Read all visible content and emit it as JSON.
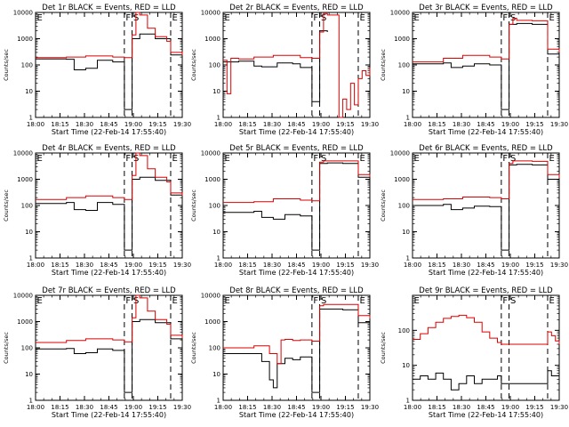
{
  "chart_data": [
    {
      "type": "line",
      "title": "Det 1r BLACK = Events, RED = LLD",
      "xlabel": "Start Time (22-Feb-14 17:55:40)",
      "ylabel": "Counts/sec",
      "yscale": "log",
      "ylim": [
        1,
        10000
      ],
      "xlim": [
        0,
        38
      ],
      "xticks": [
        "18:00",
        "18:15",
        "18:30",
        "18:45",
        "19:00",
        "19:15",
        "19:30"
      ],
      "yticks": [
        "1",
        "10",
        "100",
        "1000",
        "10000"
      ],
      "markers": [
        {
          "label": "E",
          "t": 0
        },
        {
          "label": "F",
          "t": 23
        },
        {
          "label": "S",
          "t": 25
        },
        {
          "label": "E",
          "t": 35
        }
      ],
      "series": [
        {
          "name": "Events",
          "color": "#000000",
          "x": [
            0,
            8,
            10,
            13,
            16,
            20,
            23,
            25,
            27,
            31,
            35,
            38
          ],
          "values": [
            170,
            165,
            65,
            75,
            150,
            130,
            2,
            1000,
            1500,
            1000,
            240,
            190
          ]
        },
        {
          "name": "LLD",
          "color": "#dd0000",
          "x": [
            0,
            8,
            13,
            20,
            23,
            25,
            26,
            27,
            29,
            31,
            34,
            35,
            38
          ],
          "values": [
            190,
            200,
            220,
            200,
            190,
            1400,
            10000,
            8000,
            2500,
            1200,
            800,
            300,
            230
          ]
        }
      ]
    },
    {
      "type": "line",
      "title": "Det 2r BLACK = Events, RED = LLD",
      "xlabel": "Start Time (22-Feb-14 17:55:40)",
      "ylabel": "Counts/sec",
      "yscale": "log",
      "ylim": [
        1,
        10000
      ],
      "xlim": [
        0,
        38
      ],
      "xticks": [
        "18:00",
        "18:15",
        "18:30",
        "18:45",
        "19:00",
        "19:15",
        "19:30"
      ],
      "yticks": [
        "1",
        "10",
        "100",
        "1000",
        "10000"
      ],
      "markers": [
        {
          "label": "E",
          "t": 0
        },
        {
          "label": "F",
          "t": 23
        },
        {
          "label": "S",
          "t": 25
        },
        {
          "label": "E",
          "t": 35
        }
      ],
      "series": [
        {
          "name": "Events",
          "color": "#000000",
          "x": [
            0,
            4,
            8,
            10,
            14,
            18,
            20,
            23,
            25,
            27
          ],
          "values": [
            130,
            140,
            90,
            85,
            120,
            110,
            80,
            4,
            2000,
            1800
          ]
        },
        {
          "name": "LLD",
          "color": "#dd0000",
          "x": [
            0,
            1,
            2,
            4,
            8,
            13,
            20,
            23,
            25,
            26,
            27,
            30,
            31,
            32,
            33,
            34,
            35,
            36,
            37,
            38
          ],
          "values": [
            150,
            8,
            180,
            170,
            200,
            230,
            190,
            180,
            1800,
            9000,
            8000,
            1,
            5,
            2,
            20,
            3,
            30,
            60,
            40,
            80
          ]
        }
      ]
    },
    {
      "type": "line",
      "title": "Det 3r BLACK = Events, RED = LLD",
      "xlabel": "Start Time (22-Feb-14 17:55:40)",
      "ylabel": "Counts/sec",
      "yscale": "log",
      "ylim": [
        1,
        10000
      ],
      "xlim": [
        0,
        38
      ],
      "xticks": [
        "18:00",
        "18:15",
        "18:30",
        "18:45",
        "19:00",
        "19:15",
        "19:30"
      ],
      "yticks": [
        "1",
        "10",
        "100",
        "1000",
        "10000"
      ],
      "markers": [
        {
          "label": "E",
          "t": 0
        },
        {
          "label": "F",
          "t": 23
        },
        {
          "label": "S",
          "t": 25
        },
        {
          "label": "E",
          "t": 35
        }
      ],
      "series": [
        {
          "name": "Events",
          "color": "#000000",
          "x": [
            0,
            8,
            10,
            13,
            16,
            20,
            23,
            25,
            27,
            31,
            35,
            38
          ],
          "values": [
            110,
            120,
            80,
            90,
            110,
            100,
            2,
            3500,
            3800,
            3500,
            260,
            200
          ]
        },
        {
          "name": "LLD",
          "color": "#dd0000",
          "x": [
            0,
            8,
            13,
            20,
            23,
            25,
            26,
            27,
            31,
            35,
            38
          ],
          "values": [
            130,
            180,
            230,
            200,
            170,
            3500,
            6000,
            5000,
            4800,
            400,
            300
          ]
        }
      ]
    },
    {
      "type": "line",
      "title": "Det 4r BLACK = Events, RED = LLD",
      "xlabel": "Start Time (22-Feb-14 17:55:40)",
      "ylabel": "Counts/sec",
      "yscale": "log",
      "ylim": [
        1,
        10000
      ],
      "xlim": [
        0,
        38
      ],
      "xticks": [
        "18:00",
        "18:15",
        "18:30",
        "18:45",
        "19:00",
        "19:15",
        "19:30"
      ],
      "yticks": [
        "1",
        "10",
        "100",
        "1000",
        "10000"
      ],
      "markers": [
        {
          "label": "E",
          "t": 0
        },
        {
          "label": "F",
          "t": 23
        },
        {
          "label": "S",
          "t": 25
        },
        {
          "label": "E",
          "t": 35
        }
      ],
      "series": [
        {
          "name": "Events",
          "color": "#000000",
          "x": [
            0,
            8,
            10,
            13,
            16,
            20,
            23,
            25,
            27,
            31,
            35,
            38
          ],
          "values": [
            120,
            130,
            70,
            65,
            130,
            110,
            2,
            1000,
            1200,
            900,
            250,
            180
          ]
        },
        {
          "name": "LLD",
          "color": "#dd0000",
          "x": [
            0,
            8,
            13,
            20,
            23,
            25,
            26,
            27,
            29,
            31,
            34,
            35,
            38
          ],
          "values": [
            170,
            200,
            230,
            200,
            170,
            1400,
            10000,
            8000,
            2500,
            1200,
            800,
            300,
            230
          ]
        }
      ]
    },
    {
      "type": "line",
      "title": "Det 5r BLACK = Events, RED = LLD",
      "xlabel": "Start Time (22-Feb-14 17:55:40)",
      "ylabel": "Counts/sec",
      "yscale": "log",
      "ylim": [
        1,
        10000
      ],
      "xlim": [
        0,
        38
      ],
      "xticks": [
        "18:00",
        "18:15",
        "18:30",
        "18:45",
        "19:00",
        "19:15",
        "19:30"
      ],
      "yticks": [
        "1",
        "10",
        "100",
        "1000",
        "10000"
      ],
      "markers": [
        {
          "label": "E",
          "t": 0
        },
        {
          "label": "F",
          "t": 23
        },
        {
          "label": "S",
          "t": 25
        },
        {
          "label": "E",
          "t": 35
        }
      ],
      "series": [
        {
          "name": "Events",
          "color": "#000000",
          "x": [
            0,
            8,
            10,
            13,
            16,
            20,
            23,
            25,
            27,
            31,
            35,
            38
          ],
          "values": [
            55,
            60,
            35,
            30,
            45,
            40,
            2,
            4000,
            4200,
            4000,
            1200,
            900
          ]
        },
        {
          "name": "LLD",
          "color": "#dd0000",
          "x": [
            0,
            8,
            13,
            20,
            23,
            25,
            26,
            31,
            35,
            38
          ],
          "values": [
            130,
            140,
            180,
            160,
            150,
            4500,
            5000,
            5000,
            1500,
            1200
          ]
        }
      ]
    },
    {
      "type": "line",
      "title": "Det 6r BLACK = Events, RED = LLD",
      "xlabel": "Start Time (22-Feb-14 17:55:40)",
      "ylabel": "Counts/sec",
      "yscale": "log",
      "ylim": [
        1,
        10000
      ],
      "xlim": [
        0,
        38
      ],
      "xticks": [
        "18:00",
        "18:15",
        "18:30",
        "18:45",
        "19:00",
        "19:15",
        "19:30"
      ],
      "yticks": [
        "1",
        "10",
        "100",
        "1000",
        "10000"
      ],
      "markers": [
        {
          "label": "E",
          "t": 0
        },
        {
          "label": "F",
          "t": 23
        },
        {
          "label": "S",
          "t": 25
        },
        {
          "label": "E",
          "t": 35
        }
      ],
      "series": [
        {
          "name": "Events",
          "color": "#000000",
          "x": [
            0,
            8,
            10,
            13,
            16,
            20,
            23,
            25,
            27,
            31,
            35,
            38
          ],
          "values": [
            100,
            110,
            70,
            80,
            95,
            90,
            2,
            3500,
            3700,
            3500,
            1000,
            800
          ]
        },
        {
          "name": "LLD",
          "color": "#dd0000",
          "x": [
            0,
            8,
            13,
            20,
            23,
            25,
            26,
            31,
            35,
            38
          ],
          "values": [
            170,
            180,
            210,
            200,
            180,
            4000,
            5000,
            4800,
            1500,
            1100
          ]
        }
      ]
    },
    {
      "type": "line",
      "title": "Det 7r BLACK = Events, RED = LLD",
      "xlabel": "Start Time (22-Feb-14 17:55:40)",
      "ylabel": "Counts/sec",
      "yscale": "log",
      "ylim": [
        1,
        10000
      ],
      "xlim": [
        0,
        38
      ],
      "xticks": [
        "18:00",
        "18:15",
        "18:30",
        "18:45",
        "19:00",
        "19:15",
        "19:30"
      ],
      "yticks": [
        "1",
        "10",
        "100",
        "1000",
        "10000"
      ],
      "markers": [
        {
          "label": "E",
          "t": 0
        },
        {
          "label": "F",
          "t": 23
        },
        {
          "label": "S",
          "t": 25
        },
        {
          "label": "E",
          "t": 35
        }
      ],
      "series": [
        {
          "name": "Events",
          "color": "#000000",
          "x": [
            0,
            8,
            10,
            13,
            16,
            20,
            23,
            25,
            27,
            31,
            35,
            38
          ],
          "values": [
            90,
            95,
            60,
            65,
            90,
            80,
            2,
            1000,
            1200,
            900,
            220,
            180
          ]
        },
        {
          "name": "LLD",
          "color": "#dd0000",
          "x": [
            0,
            8,
            13,
            20,
            23,
            25,
            26,
            27,
            29,
            31,
            34,
            35,
            38
          ],
          "values": [
            160,
            190,
            220,
            200,
            170,
            1400,
            10000,
            8000,
            2500,
            1200,
            800,
            300,
            230
          ]
        }
      ]
    },
    {
      "type": "line",
      "title": "Det 8r BLACK = Events, RED = LLD",
      "xlabel": "Start Time (22-Feb-14 17:55:40)",
      "ylabel": "Counts/sec",
      "yscale": "log",
      "ylim": [
        1,
        10000
      ],
      "xlim": [
        0,
        38
      ],
      "xticks": [
        "18:00",
        "18:15",
        "18:30",
        "18:45",
        "19:00",
        "19:15",
        "19:30"
      ],
      "yticks": [
        "1",
        "10",
        "100",
        "1000",
        "10000"
      ],
      "markers": [
        {
          "label": "E",
          "t": 0
        },
        {
          "label": "F",
          "t": 23
        },
        {
          "label": "S",
          "t": 25
        },
        {
          "label": "E",
          "t": 35
        }
      ],
      "series": [
        {
          "name": "Events",
          "color": "#000000",
          "x": [
            0,
            8,
            10,
            12,
            13,
            14,
            16,
            18,
            20,
            23,
            25,
            27,
            31,
            35,
            38
          ],
          "values": [
            60,
            60,
            30,
            6,
            3,
            25,
            40,
            35,
            45,
            2,
            3000,
            3000,
            2800,
            900,
            700
          ]
        },
        {
          "name": "LLD",
          "color": "#dd0000",
          "x": [
            0,
            8,
            12,
            14,
            15,
            16,
            18,
            20,
            23,
            25,
            26,
            31,
            35,
            38
          ],
          "values": [
            100,
            120,
            60,
            25,
            200,
            210,
            190,
            200,
            180,
            4000,
            4500,
            4500,
            1700,
            1300
          ]
        }
      ]
    },
    {
      "type": "line",
      "title": "Det 9r BLACK = Events, RED = LLD",
      "xlabel": "Start Time (22-Feb-14 17:55:40)",
      "ylabel": "Counts/sec",
      "yscale": "log",
      "ylim": [
        1,
        1000
      ],
      "xlim": [
        0,
        38
      ],
      "xticks": [
        "18:00",
        "18:15",
        "18:30",
        "18:45",
        "19:00",
        "19:15",
        "19:30"
      ],
      "yticks": [
        "1",
        "10",
        "100"
      ],
      "markers": [
        {
          "label": "E",
          "t": 0
        },
        {
          "label": "F",
          "t": 23
        },
        {
          "label": "S",
          "t": 25
        },
        {
          "label": "E",
          "t": 35
        }
      ],
      "series": [
        {
          "name": "Events",
          "color": "#000000",
          "x": [
            0,
            2,
            4,
            6,
            8,
            10,
            12,
            14,
            16,
            18,
            20,
            22,
            23,
            35,
            36,
            38
          ],
          "values": [
            4,
            5,
            4,
            6,
            4,
            2,
            3,
            5,
            3,
            4,
            4,
            5,
            3,
            7,
            5,
            4
          ]
        },
        {
          "name": "LLD",
          "color": "#dd0000",
          "x": [
            0,
            2,
            4,
            6,
            8,
            10,
            12,
            14,
            16,
            18,
            20,
            22,
            23,
            35,
            36,
            37,
            38
          ],
          "values": [
            55,
            80,
            120,
            170,
            220,
            250,
            270,
            230,
            170,
            90,
            60,
            45,
            40,
            90,
            70,
            50,
            40
          ]
        }
      ]
    }
  ]
}
